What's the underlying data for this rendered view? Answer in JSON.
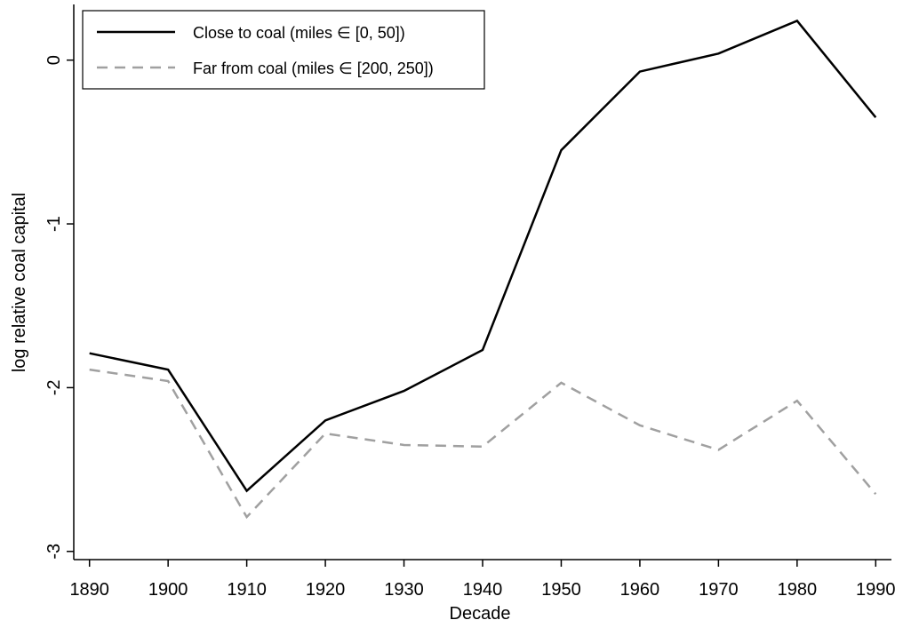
{
  "chart_data": {
    "type": "line",
    "x_label": "Decade",
    "y_label": "log relative coal capital",
    "x": [
      1890,
      1900,
      1910,
      1920,
      1930,
      1940,
      1950,
      1960,
      1970,
      1980,
      1990
    ],
    "series": [
      {
        "name": "Close to coal (miles ∈ [0, 50])",
        "color": "#000000",
        "dash": false,
        "values": [
          -1.79,
          -1.89,
          -2.63,
          -2.2,
          -2.02,
          -1.77,
          -0.55,
          -0.07,
          0.04,
          0.24,
          -0.35
        ]
      },
      {
        "name": "Far from coal (miles ∈ [200, 250])",
        "color": "#a0a0a0",
        "dash": true,
        "values": [
          -1.89,
          -1.96,
          -2.79,
          -2.28,
          -2.35,
          -2.36,
          -1.97,
          -2.23,
          -2.38,
          -2.08,
          -2.65
        ]
      }
    ],
    "xlim": [
      1888,
      1992
    ],
    "xticks": [
      1890,
      1900,
      1910,
      1920,
      1930,
      1940,
      1950,
      1960,
      1970,
      1980,
      1990
    ],
    "ylim": [
      -3.05,
      0.34
    ],
    "yticks": [
      -3,
      -2,
      -1,
      0
    ],
    "grid": false,
    "legend_position": "upper-left"
  }
}
